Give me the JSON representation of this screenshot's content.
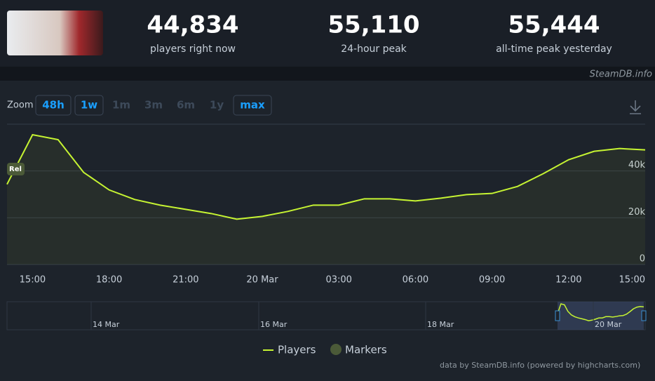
{
  "header": {
    "stats": [
      {
        "value": "44,834",
        "label": "players right now"
      },
      {
        "value": "55,110",
        "label": "24-hour peak"
      },
      {
        "value": "55,444",
        "label": "all-time peak yesterday"
      }
    ],
    "source": "SteamDB.info"
  },
  "zoom": {
    "label": "Zoom",
    "options": [
      "48h",
      "1w",
      "1m",
      "3m",
      "6m",
      "1y",
      "max"
    ]
  },
  "chart_data": {
    "type": "line",
    "categories": [
      null,
      "15:00",
      null,
      null,
      "18:00",
      null,
      null,
      "21:00",
      null,
      null,
      "20 Mar",
      null,
      null,
      "03:00",
      null,
      null,
      "06:00",
      null,
      null,
      "09:00",
      null,
      null,
      "12:00",
      null,
      null,
      "15:00"
    ],
    "series": [
      {
        "name": "Players",
        "color": "#c6f432",
        "values": [
          34300,
          55500,
          53400,
          39400,
          31900,
          27800,
          25400,
          23600,
          21800,
          19400,
          20600,
          22700,
          25400,
          25400,
          28100,
          28100,
          27200,
          28400,
          29900,
          30400,
          33400,
          38800,
          44800,
          48400,
          49600,
          49000
        ]
      },
      {
        "name": "Markers",
        "color": "#4b5a38"
      }
    ],
    "marker_label": "Rel",
    "ylim": [
      0,
      60000
    ],
    "yticks": [
      0,
      {
        "value": 20000,
        "label": "20k"
      },
      {
        "value": 40000,
        "label": "40k"
      }
    ],
    "grid": true,
    "navigator": [
      "14 Mar",
      "16 Mar",
      "18 Mar",
      "20 Mar"
    ],
    "credit": "data by SteamDB.info (powered by highcharts.com)"
  }
}
